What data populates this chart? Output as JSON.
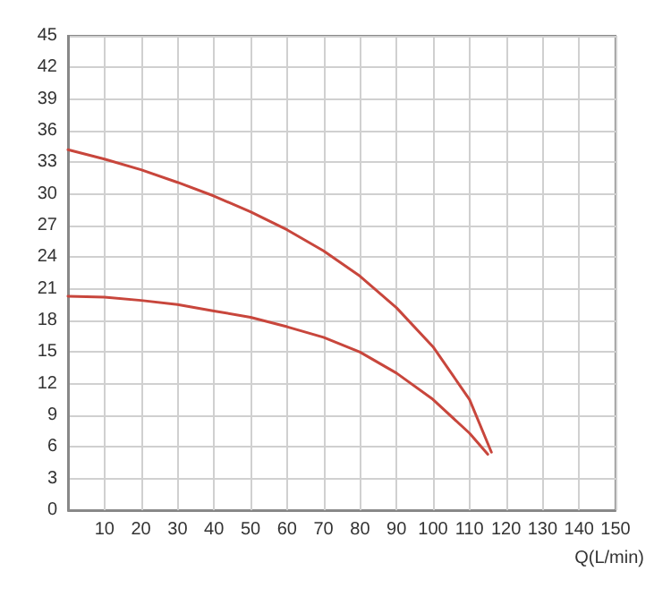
{
  "chart_data": {
    "type": "line",
    "xlabel": "Q(L/min)",
    "xlim": [
      0,
      150
    ],
    "xticks": [
      {
        "value": 0,
        "label": null
      },
      10,
      20,
      30,
      40,
      50,
      60,
      70,
      80,
      90,
      100,
      110,
      120,
      130,
      140,
      150
    ],
    "ylim": [
      0,
      45
    ],
    "yticks": [
      0,
      3,
      6,
      9,
      12,
      15,
      18,
      21,
      24,
      27,
      30,
      33,
      36,
      39,
      42,
      45
    ],
    "grid": true,
    "marker": "none",
    "line_style": "solid",
    "series": [
      {
        "color": "#c8463c",
        "x": [
          0,
          10,
          20,
          30,
          40,
          50,
          60,
          70,
          80,
          90,
          100,
          110,
          116
        ],
        "values": [
          34.2,
          33.3,
          32.3,
          31.1,
          29.8,
          28.3,
          26.6,
          24.6,
          22.2,
          19.2,
          15.5,
          10.5,
          5.5
        ]
      },
      {
        "color": "#c8463c",
        "x": [
          0,
          10,
          20,
          30,
          40,
          50,
          60,
          70,
          80,
          90,
          100,
          110,
          115
        ],
        "values": [
          20.3,
          20.2,
          19.9,
          19.5,
          18.9,
          18.3,
          17.4,
          16.4,
          15.0,
          13.0,
          10.5,
          7.3,
          5.3
        ]
      }
    ]
  }
}
